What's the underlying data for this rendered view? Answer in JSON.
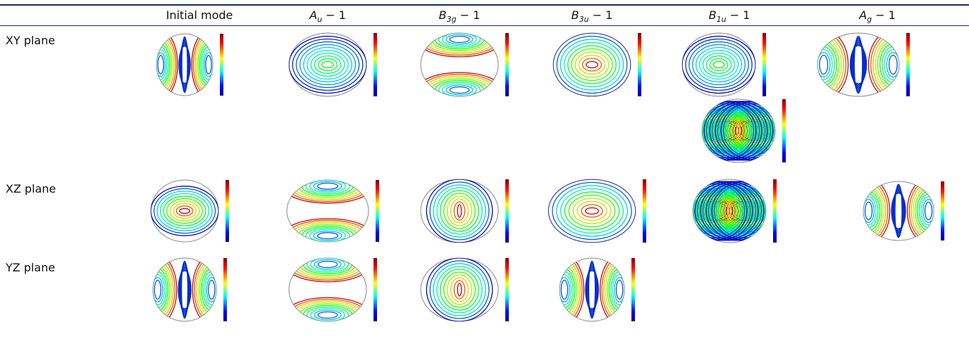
{
  "table": {
    "headers": [
      {
        "text": "Initial mode"
      },
      {
        "base": "A",
        "sub": "u",
        "suffix": " − 1"
      },
      {
        "base": "B",
        "sub": "3g",
        "suffix": " − 1"
      },
      {
        "base": "B",
        "sub": "3u",
        "suffix": " − 1"
      },
      {
        "base": "B",
        "sub": "1u",
        "suffix": " − 1"
      },
      {
        "base": "A",
        "sub": "g",
        "suffix": " − 1"
      }
    ],
    "rows": [
      {
        "label": "XY plane"
      },
      {
        "label": "XZ plane"
      },
      {
        "label": "YZ plane"
      }
    ]
  }
}
